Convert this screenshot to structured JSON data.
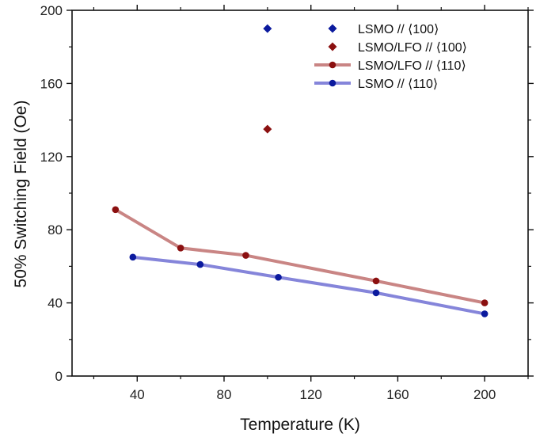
{
  "chart_data": {
    "type": "line",
    "xlabel": "Temperature (K)",
    "ylabel": "50% Switching Field (Oe)",
    "xlim": [
      10,
      220
    ],
    "ylim": [
      0,
      200
    ],
    "x_ticks": [
      40,
      80,
      120,
      160,
      200
    ],
    "x_tick_labels": [
      "40",
      "80",
      "120",
      "160",
      "200"
    ],
    "y_ticks": [
      0,
      40,
      80,
      120,
      160,
      200
    ],
    "y_tick_labels": [
      "0",
      "40",
      "80",
      "120",
      "160",
      "200"
    ],
    "grid": false,
    "legend_position": "top-right",
    "series": [
      {
        "name": "LSMO // ⟨100⟩",
        "mode": "markers",
        "marker": "diamond",
        "color": "#0b1a9e",
        "x": [
          100
        ],
        "y": [
          190
        ]
      },
      {
        "name": "LSMO/LFO // ⟨100⟩",
        "mode": "markers",
        "marker": "diamond",
        "color": "#8b1010",
        "x": [
          100
        ],
        "y": [
          135
        ]
      },
      {
        "name": "LSMO/LFO // ⟨110⟩",
        "mode": "lines+markers",
        "marker": "circle",
        "color": "#8b1010",
        "line_color": "#c98584",
        "x": [
          30,
          60,
          90,
          150,
          200
        ],
        "y": [
          91,
          70,
          66,
          52,
          40
        ]
      },
      {
        "name": "LSMO // ⟨110⟩",
        "mode": "lines+markers",
        "marker": "circle",
        "color": "#0b1a9e",
        "line_color": "#8585da",
        "x": [
          38,
          69,
          105,
          150,
          200
        ],
        "y": [
          65,
          61,
          54,
          45.5,
          34
        ]
      }
    ]
  }
}
